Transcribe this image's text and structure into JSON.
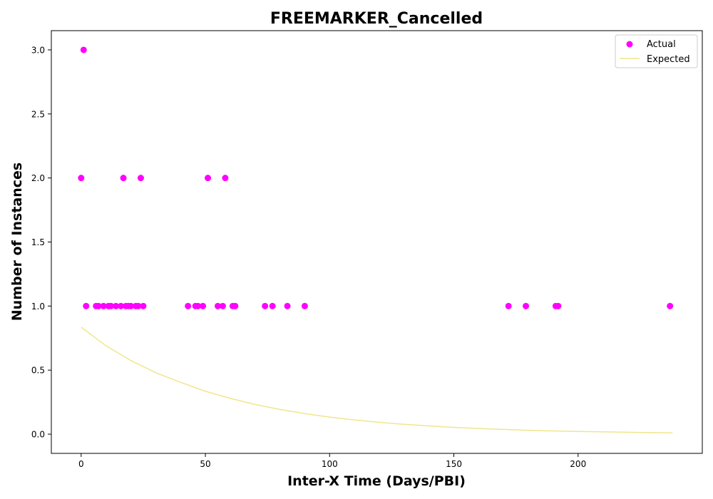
{
  "chart_data": {
    "type": "scatter",
    "title": "FREEMARKER_Cancelled",
    "xlabel": "Inter-X Time (Days/PBI)",
    "ylabel": "Number of Instances",
    "xlim": [
      -12,
      250
    ],
    "ylim": [
      -0.15,
      3.15
    ],
    "x_ticks": [
      0,
      50,
      100,
      150,
      200
    ],
    "y_ticks": [
      0.0,
      0.5,
      1.0,
      1.5,
      2.0,
      2.5,
      3.0
    ],
    "x_tick_labels": [
      "0",
      "50",
      "100",
      "150",
      "200"
    ],
    "y_tick_labels": [
      "0.0",
      "0.5",
      "1.0",
      "1.5",
      "2.0",
      "2.5",
      "3.0"
    ],
    "grid": false,
    "legend_position": "top-right",
    "series": [
      {
        "name": "Actual",
        "kind": "scatter",
        "color": "#ff00ff",
        "points": [
          [
            0,
            2
          ],
          [
            1,
            3
          ],
          [
            2,
            1
          ],
          [
            6,
            1
          ],
          [
            7,
            1
          ],
          [
            9,
            1
          ],
          [
            11,
            1
          ],
          [
            12,
            1
          ],
          [
            14,
            1
          ],
          [
            16,
            1
          ],
          [
            17,
            2
          ],
          [
            18,
            1
          ],
          [
            19,
            1
          ],
          [
            20,
            1
          ],
          [
            22,
            1
          ],
          [
            23,
            1
          ],
          [
            24,
            2
          ],
          [
            25,
            1
          ],
          [
            43,
            1
          ],
          [
            46,
            1
          ],
          [
            47,
            1
          ],
          [
            49,
            1
          ],
          [
            51,
            2
          ],
          [
            55,
            1
          ],
          [
            57,
            1
          ],
          [
            58,
            2
          ],
          [
            61,
            1
          ],
          [
            62,
            1
          ],
          [
            74,
            1
          ],
          [
            77,
            1
          ],
          [
            83,
            1
          ],
          [
            90,
            1
          ],
          [
            172,
            1
          ],
          [
            179,
            1
          ],
          [
            191,
            1
          ],
          [
            192,
            1
          ],
          [
            237,
            1
          ]
        ]
      },
      {
        "name": "Expected",
        "kind": "line",
        "color": "#f0e68c",
        "points": [
          [
            0,
            0.835
          ],
          [
            10,
            0.69
          ],
          [
            20,
            0.575
          ],
          [
            30,
            0.48
          ],
          [
            40,
            0.405
          ],
          [
            50,
            0.335
          ],
          [
            60,
            0.28
          ],
          [
            70,
            0.232
          ],
          [
            80,
            0.193
          ],
          [
            90,
            0.16
          ],
          [
            100,
            0.133
          ],
          [
            110,
            0.111
          ],
          [
            120,
            0.092
          ],
          [
            130,
            0.077
          ],
          [
            140,
            0.064
          ],
          [
            150,
            0.053
          ],
          [
            160,
            0.044
          ],
          [
            170,
            0.037
          ],
          [
            180,
            0.03
          ],
          [
            190,
            0.025
          ],
          [
            200,
            0.021
          ],
          [
            210,
            0.018
          ],
          [
            220,
            0.015
          ],
          [
            230,
            0.012
          ],
          [
            238,
            0.01
          ]
        ]
      }
    ]
  }
}
